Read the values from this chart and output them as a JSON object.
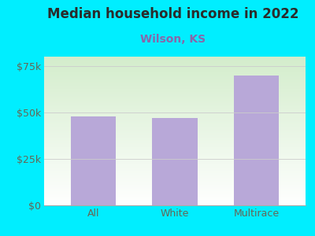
{
  "title": "Median household income in 2022",
  "subtitle": "Wilson, KS",
  "categories": [
    "All",
    "White",
    "Multirace"
  ],
  "values": [
    48000,
    47000,
    70000
  ],
  "bar_color": "#b8a8d8",
  "background_color": "#00eeff",
  "chart_bg_colors": [
    "#d4edc8",
    "#f5fff5"
  ],
  "title_color": "#2b2b2b",
  "subtitle_color": "#8866aa",
  "axis_label_color": "#666655",
  "ylim": [
    0,
    80000
  ],
  "yticks": [
    0,
    25000,
    50000,
    75000
  ],
  "ytick_labels": [
    "$0",
    "$25k",
    "$50k",
    "$75k"
  ],
  "title_fontsize": 12,
  "subtitle_fontsize": 10,
  "tick_fontsize": 9
}
